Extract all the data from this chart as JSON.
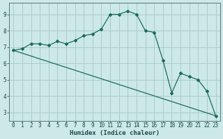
{
  "title": "",
  "xlabel": "Humidex (Indice chaleur)",
  "ylabel": "",
  "background_color": "#cce8e8",
  "grid_color": "#aacccc",
  "line_color": "#1a6b5a",
  "xlim": [
    -0.5,
    23.5
  ],
  "ylim": [
    2.5,
    9.7
  ],
  "xticks": [
    0,
    1,
    2,
    3,
    4,
    5,
    6,
    7,
    8,
    9,
    10,
    11,
    12,
    13,
    14,
    15,
    16,
    17,
    18,
    19,
    20,
    21,
    22,
    23
  ],
  "yticks": [
    3,
    4,
    5,
    6,
    7,
    8,
    9
  ],
  "curve_x": [
    0,
    1,
    2,
    3,
    4,
    5,
    6,
    7,
    8,
    9,
    10,
    11,
    12,
    13,
    14,
    15,
    16,
    17,
    18,
    19,
    20,
    21,
    22,
    23
  ],
  "curve_y": [
    6.8,
    6.9,
    7.2,
    7.2,
    7.1,
    7.35,
    7.2,
    7.4,
    7.7,
    7.8,
    8.1,
    9.0,
    9.0,
    9.2,
    9.0,
    8.0,
    7.9,
    6.2,
    4.2,
    5.4,
    5.2,
    5.0,
    4.3,
    2.8
  ],
  "line2_x": [
    0,
    23
  ],
  "line2_y": [
    6.8,
    2.8
  ],
  "marker_style": "D",
  "marker_size": 2.0,
  "line_width": 0.9,
  "tick_fontsize": 5.5,
  "xlabel_fontsize": 6.5,
  "xlabel_fontweight": "bold"
}
